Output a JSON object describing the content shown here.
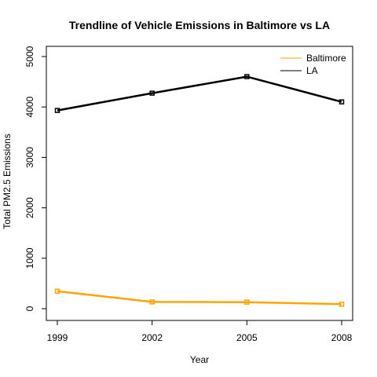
{
  "chart_data": {
    "type": "line",
    "title": "Trendline of Vehicle Emissions in Baltimore vs LA",
    "xlabel": "Year",
    "ylabel": "Total PM2.5 Emissions",
    "x": [
      1999,
      2002,
      2005,
      2008
    ],
    "x_ticks": [
      "1999",
      "2002",
      "2005",
      "2008"
    ],
    "y_ticks": [
      "0",
      "1000",
      "2000",
      "3000",
      "4000",
      "5000"
    ],
    "ylim": [
      0,
      5000
    ],
    "series": [
      {
        "name": "Baltimore",
        "color": "#FFA500",
        "values": [
          347,
          134,
          130,
          89
        ]
      },
      {
        "name": "LA",
        "color": "#000000",
        "values": [
          3931,
          4274,
          4602,
          4101
        ]
      }
    ],
    "legend": {
      "position": "top-right",
      "entries": [
        "Baltimore",
        "LA"
      ]
    },
    "grid": false
  }
}
